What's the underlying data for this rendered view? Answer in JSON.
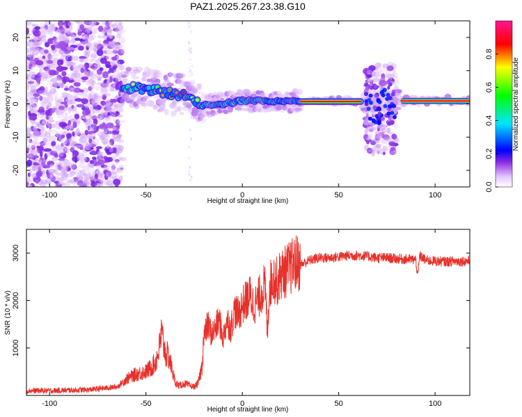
{
  "title": "PAZ1.2025.267.23.38.G10",
  "chart_data": [
    {
      "type": "heatmap",
      "xlabel": "Height of straight line (km)",
      "ylabel": "Frequency (Hz)",
      "xlim": [
        -112,
        118
      ],
      "ylim": [
        -25,
        25
      ],
      "x_ticks": [
        -100,
        -50,
        0,
        50,
        100
      ],
      "y_ticks": [
        -20,
        -10,
        0,
        10,
        20
      ],
      "x_tick_labels": [
        "-100",
        "-50",
        "0",
        "50",
        "100"
      ],
      "y_tick_labels": [
        "-20",
        "-10",
        "0",
        "10",
        "20"
      ],
      "colorbar": {
        "label": "Normalized spectral amplitude",
        "range": [
          0,
          1
        ],
        "ticks": [
          0.0,
          0.2,
          0.4,
          0.6,
          0.8
        ],
        "tick_labels": [
          "0.0",
          "0.2",
          "0.4",
          "0.6",
          "0.8"
        ]
      },
      "ridge": {
        "description_points": [
          [
            -60,
            5
          ],
          [
            -50,
            4.5
          ],
          [
            -40,
            3.5
          ],
          [
            -30,
            2.5
          ],
          [
            -20,
            -0.5
          ],
          [
            -10,
            0
          ],
          [
            0,
            1
          ],
          [
            10,
            1
          ],
          [
            20,
            0.8
          ],
          [
            30,
            0.7
          ],
          [
            60,
            0.7
          ],
          [
            80,
            0.9
          ],
          [
            118,
            0.9
          ]
        ],
        "clean_segments": [
          [
            30,
            62
          ],
          [
            82,
            118
          ]
        ]
      },
      "noise_regions": [
        {
          "x": [
            -112,
            -62
          ],
          "y": [
            -25,
            25
          ]
        },
        {
          "x": [
            64,
            80
          ],
          "y": [
            -15,
            12
          ]
        }
      ]
    },
    {
      "type": "line",
      "xlabel": "Height of straight line (km)",
      "ylabel": "SNR (10 * v/v)",
      "xlim": [
        -112,
        118
      ],
      "ylim": [
        0,
        3500
      ],
      "x_ticks": [
        -100,
        -50,
        0,
        50,
        100
      ],
      "y_ticks": [
        1000,
        2000,
        3000
      ],
      "x_tick_labels": [
        "-100",
        "-50",
        "0",
        "50",
        "100"
      ],
      "y_tick_labels": [
        "1000",
        "2000",
        "3000"
      ],
      "color": "#e8302a",
      "series": [
        {
          "x": [
            -112,
            -100,
            -80,
            -65,
            -60,
            -55,
            -50,
            -47,
            -45,
            -43,
            -42,
            -40,
            -38,
            -35,
            -33,
            -30,
            -27,
            -25,
            -23,
            -21,
            -20,
            -18,
            -16,
            -14,
            -12,
            -10,
            -8,
            -6,
            -4,
            -2,
            0,
            2,
            4,
            6,
            8,
            10,
            11,
            12,
            13,
            14,
            15,
            16,
            18,
            20,
            22,
            25,
            28,
            30,
            35,
            40,
            45,
            50,
            55,
            60,
            65,
            70,
            75,
            80,
            85,
            90,
            91,
            92,
            95,
            100,
            105,
            110,
            118
          ],
          "y": [
            100,
            100,
            120,
            180,
            350,
            450,
            500,
            600,
            700,
            1000,
            1300,
            900,
            800,
            300,
            200,
            250,
            200,
            180,
            250,
            600,
            1200,
            1500,
            1300,
            1400,
            1600,
            1200,
            1600,
            1400,
            1800,
            1700,
            1900,
            2000,
            2100,
            1900,
            2000,
            2200,
            2300,
            2200,
            1300,
            2300,
            2400,
            2500,
            2400,
            2550,
            2600,
            2700,
            2800,
            2750,
            2850,
            2900,
            2900,
            2920,
            2950,
            2950,
            2930,
            2900,
            2900,
            2880,
            2870,
            2860,
            2500,
            2950,
            2850,
            2830,
            2820,
            2830,
            2830
          ]
        }
      ]
    }
  ]
}
